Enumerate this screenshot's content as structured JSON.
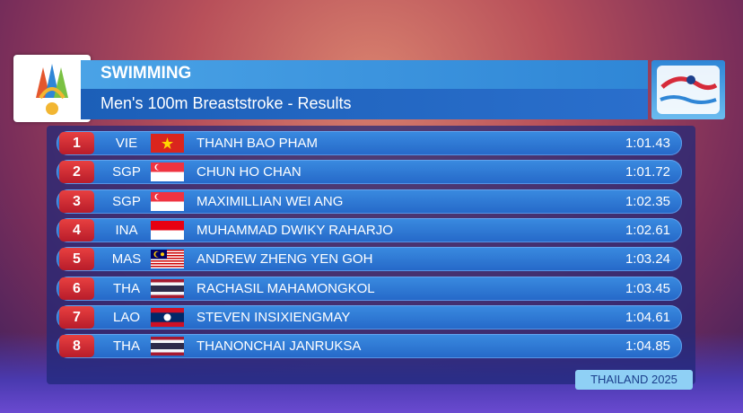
{
  "header": {
    "sport": "SWIMMING",
    "event": "Men's 100m Breaststroke - Results"
  },
  "table": {
    "rows": [
      {
        "rank": "1",
        "country": "VIE",
        "name": "THANH BAO PHAM",
        "time": "1:01.43"
      },
      {
        "rank": "2",
        "country": "SGP",
        "name": "CHUN HO CHAN",
        "time": "1:01.72"
      },
      {
        "rank": "3",
        "country": "SGP",
        "name": "MAXIMILLIAN WEI ANG",
        "time": "1:02.35"
      },
      {
        "rank": "4",
        "country": "INA",
        "name": "MUHAMMAD DWIKY RAHARJO",
        "time": "1:02.61"
      },
      {
        "rank": "5",
        "country": "MAS",
        "name": "ANDREW ZHENG YEN GOH",
        "time": "1:03.24"
      },
      {
        "rank": "6",
        "country": "THA",
        "name": "RACHASIL MAHAMONGKOL",
        "time": "1:03.45"
      },
      {
        "rank": "7",
        "country": "LAO",
        "name": "STEVEN INSIXIENGMAY",
        "time": "1:04.61"
      },
      {
        "rank": "8",
        "country": "THA",
        "name": "THANONCHAI JANRUKSA",
        "time": "1:04.85"
      }
    ]
  },
  "footer": "THAILAND 2025"
}
